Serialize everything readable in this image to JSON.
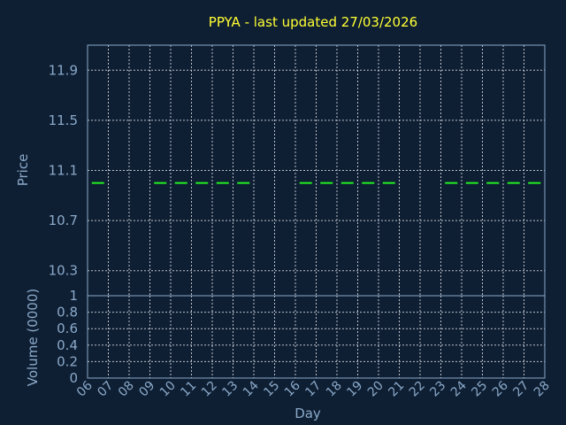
{
  "chart_data": {
    "type": "line",
    "title": "PPYA - last updated 27/03/2026",
    "xlabel": "Day",
    "price_panel": {
      "ylabel": "Price",
      "y_ticks": [
        "11.9",
        "11.5",
        "11.1",
        "10.7",
        "10.3"
      ],
      "ylim": [
        10.1,
        12.1
      ],
      "series": [
        {
          "x": [
            "06",
            "09",
            "10",
            "11",
            "12",
            "13",
            "16",
            "17",
            "18",
            "19",
            "20",
            "23",
            "24",
            "25",
            "26",
            "27"
          ],
          "values": [
            11.0,
            11.0,
            11.0,
            11.0,
            11.0,
            11.0,
            11.0,
            11.0,
            11.0,
            11.0,
            11.0,
            11.0,
            11.0,
            11.0,
            11.0,
            11.0
          ],
          "color": "#22ee22",
          "style": "dashed"
        }
      ]
    },
    "volume_panel": {
      "ylabel": "Volume (0000)",
      "y_ticks": [
        "1",
        "0.8",
        "0.6",
        "0.4",
        "0.2",
        "0"
      ],
      "ylim": [
        0,
        1
      ]
    },
    "x_ticks": [
      "06",
      "07",
      "08",
      "09",
      "10",
      "11",
      "12",
      "13",
      "14",
      "15",
      "16",
      "17",
      "18",
      "19",
      "20",
      "21",
      "22",
      "23",
      "24",
      "25",
      "26",
      "27",
      "28"
    ],
    "grid": true,
    "colors": {
      "background": "#0f1f33",
      "title": "#ffff33",
      "axis_text": "#8aa9c9",
      "grid": "#d8dde6",
      "price_line": "#22ee22"
    }
  }
}
